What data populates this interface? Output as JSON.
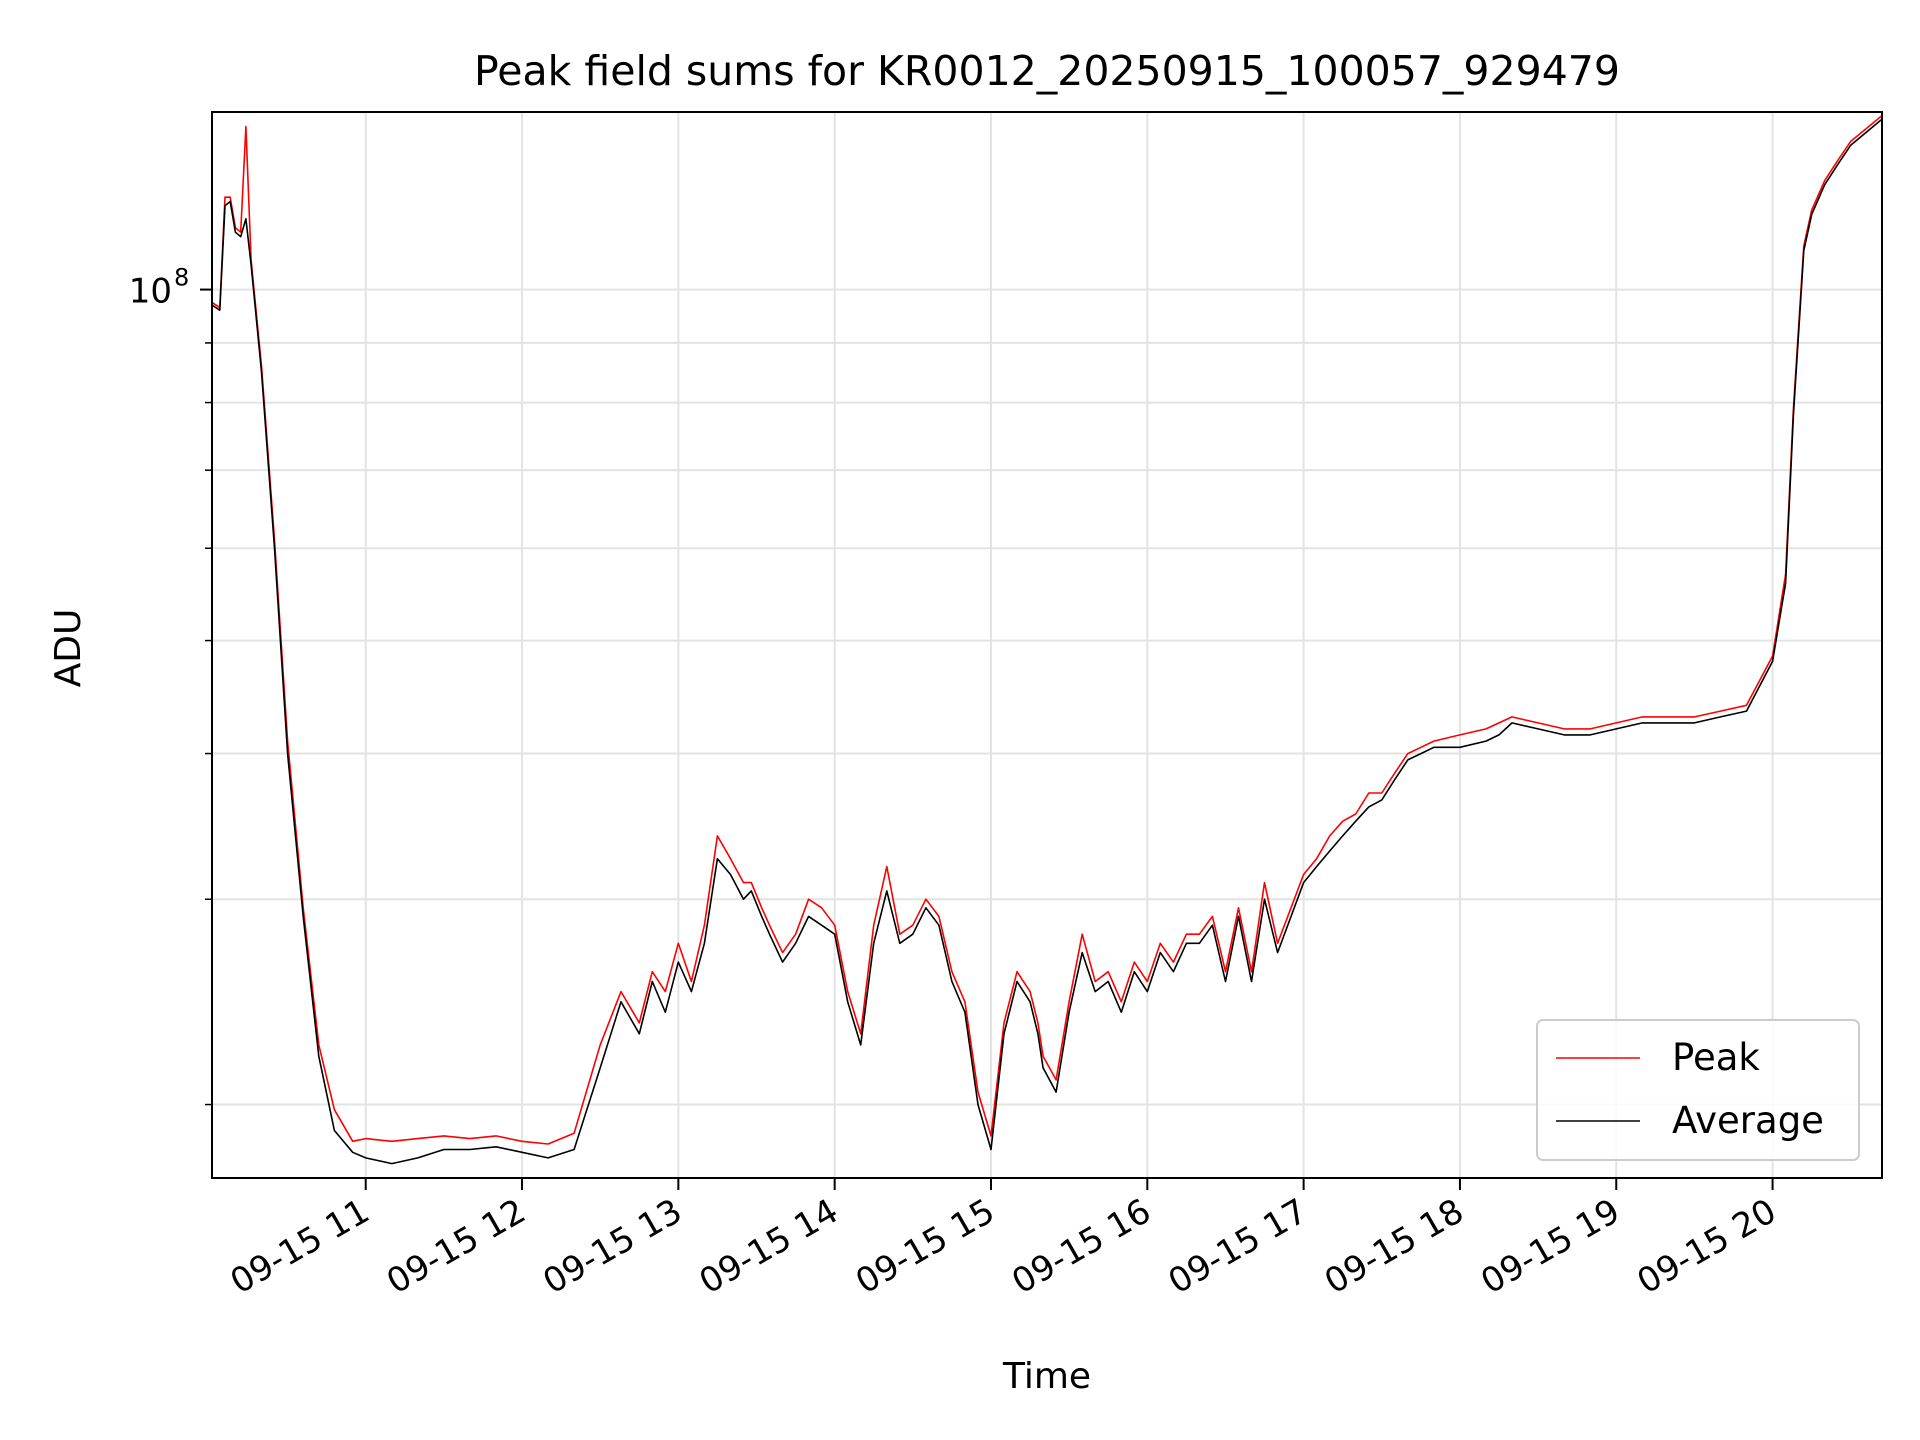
{
  "chart_data": {
    "type": "line",
    "title": "Peak field sums for KR0012_20250915_100057_929479",
    "xlabel": "Time",
    "ylabel": "ADU",
    "y_scale": "log",
    "x_range": [
      "09-15 10:01",
      "09-15 20:42"
    ],
    "ylim": [
      17300000,
      142000000
    ],
    "y_major_tick": {
      "value": 100000000,
      "label_base": "10",
      "label_exp": "8"
    },
    "y_minor_ticks": [
      20000000,
      30000000,
      40000000,
      50000000,
      60000000,
      70000000,
      80000000,
      90000000
    ],
    "x_ticks": [
      "09-15 11",
      "09-15 12",
      "09-15 13",
      "09-15 14",
      "09-15 15",
      "09-15 16",
      "09-15 17",
      "09-15 18",
      "09-15 19",
      "09-15 20"
    ],
    "grid": true,
    "legend": {
      "position": "lower-right",
      "entries": [
        "Peak",
        "Average"
      ]
    },
    "series": [
      {
        "name": "Average",
        "color": "#000000",
        "x": [
          "10:01",
          "10:04",
          "10:06",
          "10:08",
          "10:10",
          "10:12",
          "10:14",
          "10:16",
          "10:20",
          "10:25",
          "10:30",
          "10:36",
          "10:42",
          "10:48",
          "10:55",
          "11:00",
          "11:10",
          "11:20",
          "11:30",
          "11:40",
          "11:50",
          "12:00",
          "12:10",
          "12:20",
          "12:30",
          "12:38",
          "12:45",
          "12:50",
          "12:55",
          "13:00",
          "13:05",
          "13:10",
          "13:15",
          "13:20",
          "13:25",
          "13:28",
          "13:32",
          "13:35",
          "13:40",
          "13:45",
          "13:50",
          "13:55",
          "14:00",
          "14:05",
          "14:10",
          "14:15",
          "14:20",
          "14:25",
          "14:30",
          "14:35",
          "14:40",
          "14:45",
          "14:50",
          "14:55",
          "15:00",
          "15:05",
          "15:10",
          "15:15",
          "15:18",
          "15:20",
          "15:25",
          "15:30",
          "15:35",
          "15:40",
          "15:45",
          "15:50",
          "15:55",
          "16:00",
          "16:05",
          "16:10",
          "16:15",
          "16:20",
          "16:25",
          "16:30",
          "16:35",
          "16:40",
          "16:45",
          "16:50",
          "17:00",
          "17:05",
          "17:10",
          "17:15",
          "17:20",
          "17:25",
          "17:30",
          "17:35",
          "17:40",
          "17:45",
          "17:50",
          "18:00",
          "18:10",
          "18:15",
          "18:20",
          "18:30",
          "18:40",
          "18:50",
          "19:00",
          "19:10",
          "19:20",
          "19:30",
          "19:40",
          "19:50",
          "20:00",
          "20:05",
          "20:08",
          "20:12",
          "20:15",
          "20:20",
          "20:25",
          "20:30",
          "20:42"
        ],
        "y": [
          97000000,
          96000000,
          118000000,
          119000000,
          112000000,
          111000000,
          115000000,
          105000000,
          85000000,
          60000000,
          40000000,
          29000000,
          22000000,
          19000000,
          18200000,
          18000000,
          17800000,
          18000000,
          18300000,
          18300000,
          18400000,
          18200000,
          18000000,
          18300000,
          21500000,
          24500000,
          23000000,
          25500000,
          24000000,
          26500000,
          25000000,
          27500000,
          32500000,
          31500000,
          30000000,
          30500000,
          29000000,
          28000000,
          26500000,
          27500000,
          29000000,
          28500000,
          28000000,
          24500000,
          22500000,
          27500000,
          30500000,
          27500000,
          28000000,
          29500000,
          28500000,
          25500000,
          24000000,
          20000000,
          18300000,
          23000000,
          25500000,
          24500000,
          23000000,
          21500000,
          20500000,
          24000000,
          27000000,
          25000000,
          25500000,
          24000000,
          26000000,
          25000000,
          27000000,
          26000000,
          27500000,
          27500000,
          28500000,
          25500000,
          29000000,
          25500000,
          30000000,
          27000000,
          31000000,
          32000000,
          33000000,
          34000000,
          35000000,
          36000000,
          36500000,
          38000000,
          39500000,
          40000000,
          40500000,
          40500000,
          41000000,
          41500000,
          42500000,
          42000000,
          41500000,
          41500000,
          42000000,
          42500000,
          42500000,
          42500000,
          43000000,
          43500000,
          48000000,
          56000000,
          78000000,
          108000000,
          116000000,
          123000000,
          128000000,
          133000000,
          140000000
        ]
      },
      {
        "name": "Peak",
        "color": "#ff0000",
        "x": [
          "10:01",
          "10:04",
          "10:06",
          "10:08",
          "10:10",
          "10:12",
          "10:14",
          "10:16",
          "10:20",
          "10:25",
          "10:30",
          "10:36",
          "10:42",
          "10:48",
          "10:55",
          "11:00",
          "11:10",
          "11:20",
          "11:30",
          "11:40",
          "11:50",
          "12:00",
          "12:10",
          "12:20",
          "12:30",
          "12:38",
          "12:45",
          "12:50",
          "12:55",
          "13:00",
          "13:05",
          "13:10",
          "13:15",
          "13:20",
          "13:25",
          "13:28",
          "13:32",
          "13:35",
          "13:40",
          "13:45",
          "13:50",
          "13:55",
          "14:00",
          "14:05",
          "14:10",
          "14:15",
          "14:20",
          "14:25",
          "14:30",
          "14:35",
          "14:40",
          "14:45",
          "14:50",
          "14:55",
          "15:00",
          "15:05",
          "15:10",
          "15:15",
          "15:18",
          "15:20",
          "15:25",
          "15:30",
          "15:35",
          "15:40",
          "15:45",
          "15:50",
          "15:55",
          "16:00",
          "16:05",
          "16:10",
          "16:15",
          "16:20",
          "16:25",
          "16:30",
          "16:35",
          "16:40",
          "16:45",
          "16:50",
          "17:00",
          "17:05",
          "17:10",
          "17:15",
          "17:20",
          "17:25",
          "17:30",
          "17:35",
          "17:40",
          "17:45",
          "17:50",
          "18:00",
          "18:10",
          "18:15",
          "18:20",
          "18:30",
          "18:40",
          "18:50",
          "19:00",
          "19:10",
          "19:20",
          "19:30",
          "19:40",
          "19:50",
          "20:00",
          "20:05",
          "20:08",
          "20:12",
          "20:15",
          "20:20",
          "20:25",
          "20:30",
          "20:42"
        ],
        "y": [
          97500000,
          96500000,
          120000000,
          120000000,
          113000000,
          112000000,
          138000000,
          106000000,
          86000000,
          61000000,
          41000000,
          29500000,
          22500000,
          19800000,
          18600000,
          18700000,
          18600000,
          18700000,
          18800000,
          18700000,
          18800000,
          18600000,
          18500000,
          18900000,
          22500000,
          25000000,
          23500000,
          26000000,
          25000000,
          27500000,
          25500000,
          28500000,
          34000000,
          32500000,
          31000000,
          31000000,
          29500000,
          28500000,
          27000000,
          28000000,
          30000000,
          29500000,
          28500000,
          25000000,
          23000000,
          28500000,
          32000000,
          28000000,
          28500000,
          30000000,
          29000000,
          26000000,
          24500000,
          20500000,
          18800000,
          23500000,
          26000000,
          25000000,
          23500000,
          22000000,
          21000000,
          24500000,
          28000000,
          25500000,
          26000000,
          24500000,
          26500000,
          25500000,
          27500000,
          26500000,
          28000000,
          28000000,
          29000000,
          26000000,
          29500000,
          26000000,
          31000000,
          27500000,
          31500000,
          32500000,
          34000000,
          35000000,
          35500000,
          37000000,
          37000000,
          38500000,
          40000000,
          40500000,
          41000000,
          41500000,
          42000000,
          42500000,
          43000000,
          42500000,
          42000000,
          42000000,
          42500000,
          43000000,
          43000000,
          43000000,
          43500000,
          44000000,
          48500000,
          57000000,
          79000000,
          109000000,
          117000000,
          124000000,
          129000000,
          134000000,
          141000000
        ]
      }
    ]
  }
}
